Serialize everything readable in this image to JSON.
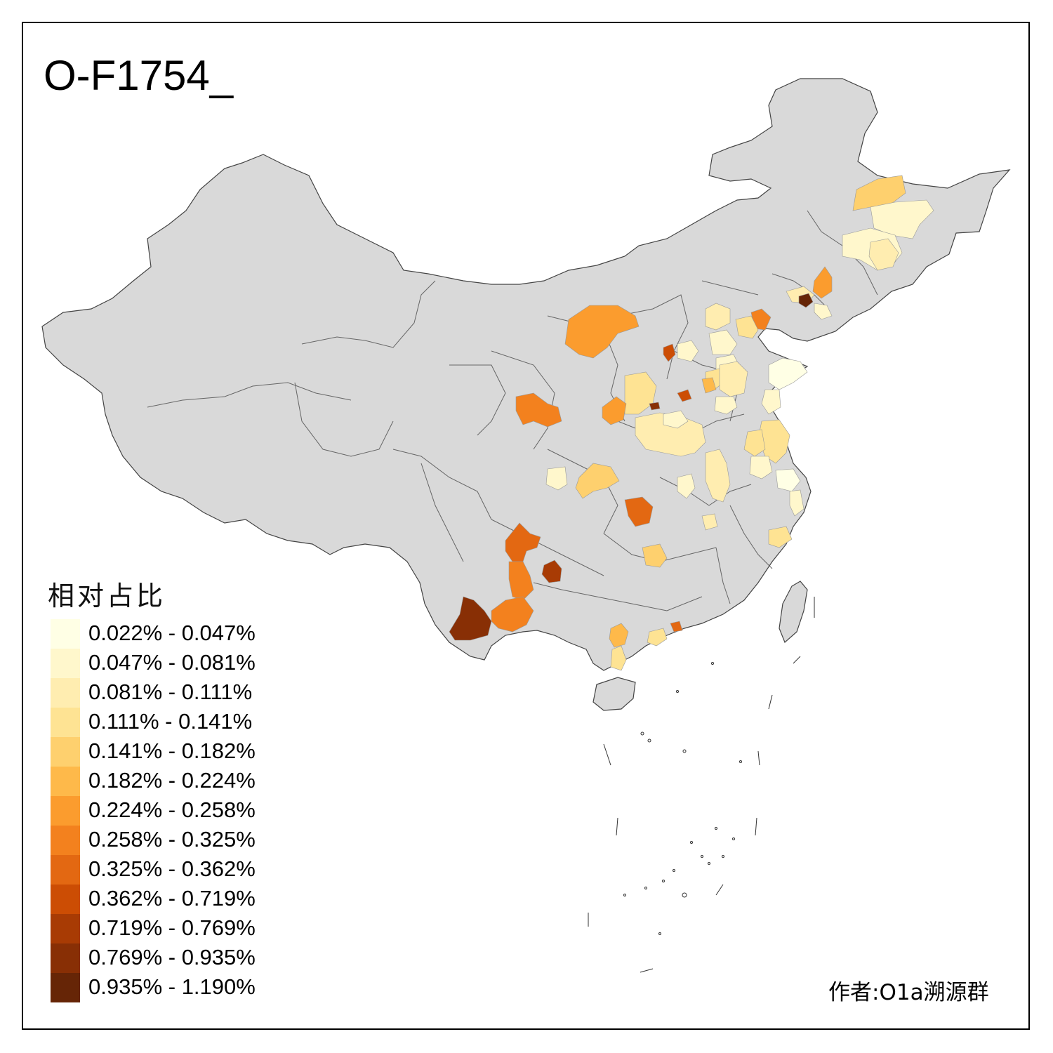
{
  "title": "O-F1754_",
  "legend": {
    "title": "相对占比",
    "items": [
      {
        "label": "0.022% - 0.047%",
        "color": "#FFFFE5"
      },
      {
        "label": "0.047% - 0.081%",
        "color": "#FFF7CC"
      },
      {
        "label": "0.081% - 0.111%",
        "color": "#FFEDB0"
      },
      {
        "label": "0.111% - 0.141%",
        "color": "#FEE393"
      },
      {
        "label": "0.141% - 0.182%",
        "color": "#FED06E"
      },
      {
        "label": "0.182% - 0.224%",
        "color": "#FEB94A"
      },
      {
        "label": "0.224% - 0.258%",
        "color": "#FB9C2E"
      },
      {
        "label": "0.258% - 0.325%",
        "color": "#F3811E"
      },
      {
        "label": "0.325% - 0.362%",
        "color": "#E36812"
      },
      {
        "label": "0.362% - 0.719%",
        "color": "#CC4D04"
      },
      {
        "label": "0.719% - 0.769%",
        "color": "#A83B04"
      },
      {
        "label": "0.769% - 0.935%",
        "color": "#882F05"
      },
      {
        "label": "0.935% - 1.190%",
        "color": "#662506"
      }
    ]
  },
  "credit": "作者:O1a溯源群",
  "colors": {
    "base_fill": "#D9D9D9",
    "border": "#555555"
  }
}
